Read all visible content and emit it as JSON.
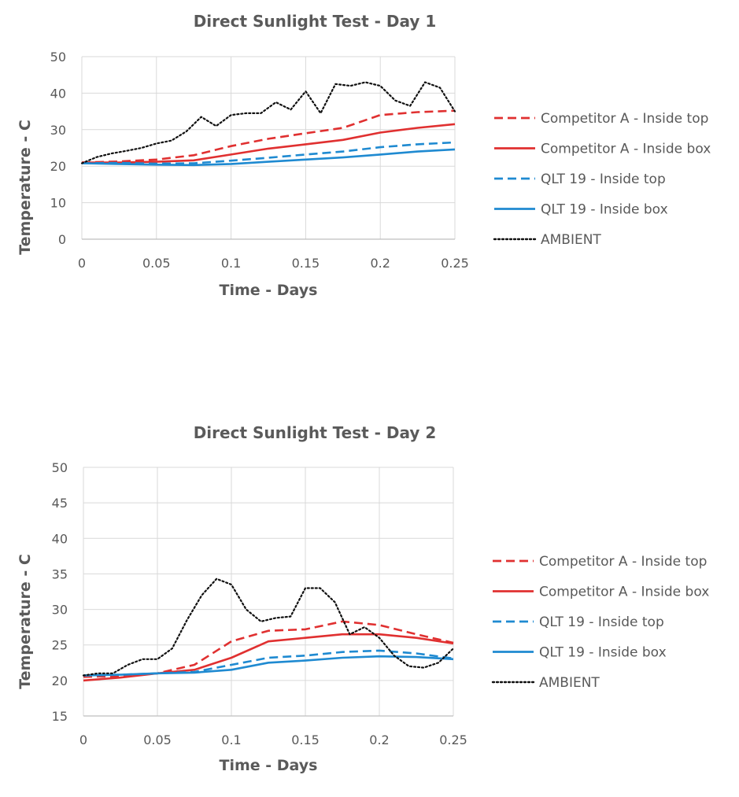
{
  "colors": {
    "competitor": "#e03030",
    "qlt": "#1f8ad1",
    "ambient": "#111111",
    "grid": "#d9d9d9",
    "text": "#595959"
  },
  "chart_data": [
    {
      "type": "line",
      "title": "Direct Sunlight Test -  Day 1",
      "xlabel": "Time - Days",
      "ylabel": "Temperature - C",
      "xlim": [
        0,
        0.25
      ],
      "ylim": [
        0,
        50
      ],
      "xticks": [
        0,
        0.05,
        0.1,
        0.15,
        0.2,
        0.25
      ],
      "xtick_labels": [
        "0",
        "0.05",
        "0.1",
        "0.15",
        "0.2",
        "0.25"
      ],
      "yticks": [
        0,
        10,
        20,
        30,
        40,
        50
      ],
      "ytick_labels": [
        "0",
        "10",
        "20",
        "30",
        "40",
        "50"
      ],
      "grid": true,
      "legend": "right",
      "series": [
        {
          "name": "Competitor A - Inside top",
          "color": "#e03030",
          "style": "dashed",
          "points": [
            [
              0,
              21
            ],
            [
              0.025,
              21.3
            ],
            [
              0.05,
              21.8
            ],
            [
              0.075,
              23
            ],
            [
              0.1,
              25.5
            ],
            [
              0.125,
              27.5
            ],
            [
              0.15,
              29
            ],
            [
              0.175,
              30.5
            ],
            [
              0.2,
              34
            ],
            [
              0.225,
              34.8
            ],
            [
              0.25,
              35.2
            ]
          ]
        },
        {
          "name": "Competitor A - Inside box",
          "color": "#e03030",
          "style": "solid",
          "points": [
            [
              0,
              21
            ],
            [
              0.025,
              21
            ],
            [
              0.05,
              21.2
            ],
            [
              0.075,
              21.6
            ],
            [
              0.1,
              23.2
            ],
            [
              0.125,
              24.8
            ],
            [
              0.15,
              26
            ],
            [
              0.175,
              27.2
            ],
            [
              0.2,
              29.2
            ],
            [
              0.225,
              30.5
            ],
            [
              0.25,
              31.5
            ]
          ]
        },
        {
          "name": "QLT 19 - Inside top",
          "color": "#1f8ad1",
          "style": "dashed",
          "points": [
            [
              0,
              20.8
            ],
            [
              0.025,
              20.9
            ],
            [
              0.05,
              20.7
            ],
            [
              0.075,
              20.8
            ],
            [
              0.1,
              21.5
            ],
            [
              0.125,
              22.3
            ],
            [
              0.15,
              23.2
            ],
            [
              0.175,
              24
            ],
            [
              0.2,
              25.2
            ],
            [
              0.225,
              26
            ],
            [
              0.25,
              26.5
            ]
          ]
        },
        {
          "name": "QLT 19 - Inside box",
          "color": "#1f8ad1",
          "style": "solid",
          "points": [
            [
              0,
              20.8
            ],
            [
              0.025,
              20.6
            ],
            [
              0.05,
              20.4
            ],
            [
              0.075,
              20.3
            ],
            [
              0.1,
              20.6
            ],
            [
              0.125,
              21.2
            ],
            [
              0.15,
              21.8
            ],
            [
              0.175,
              22.4
            ],
            [
              0.2,
              23.2
            ],
            [
              0.225,
              24
            ],
            [
              0.25,
              24.6
            ]
          ]
        },
        {
          "name": "AMBIENT",
          "color": "#111111",
          "style": "dotted",
          "points": [
            [
              0,
              20.8
            ],
            [
              0.01,
              22.5
            ],
            [
              0.02,
              23.5
            ],
            [
              0.03,
              24.2
            ],
            [
              0.04,
              25
            ],
            [
              0.05,
              26.2
            ],
            [
              0.06,
              27
            ],
            [
              0.07,
              29.5
            ],
            [
              0.08,
              33.5
            ],
            [
              0.09,
              31
            ],
            [
              0.1,
              34
            ],
            [
              0.11,
              34.5
            ],
            [
              0.12,
              34.5
            ],
            [
              0.13,
              37.5
            ],
            [
              0.14,
              35.5
            ],
            [
              0.15,
              40.5
            ],
            [
              0.16,
              34.5
            ],
            [
              0.17,
              42.5
            ],
            [
              0.18,
              42
            ],
            [
              0.19,
              43
            ],
            [
              0.2,
              42
            ],
            [
              0.21,
              38
            ],
            [
              0.22,
              36.5
            ],
            [
              0.23,
              43
            ],
            [
              0.24,
              41.5
            ],
            [
              0.25,
              35
            ]
          ]
        }
      ]
    },
    {
      "type": "line",
      "title": "Direct Sunlight Test - Day 2",
      "xlabel": "Time - Days",
      "ylabel": "Temperature - C",
      "xlim": [
        0,
        0.25
      ],
      "ylim": [
        15,
        50
      ],
      "xticks": [
        0,
        0.05,
        0.1,
        0.15,
        0.2,
        0.25
      ],
      "xtick_labels": [
        "0",
        "0.05",
        "0.1",
        "0.15",
        "0.2",
        "0.25"
      ],
      "yticks": [
        15,
        20,
        25,
        30,
        35,
        40,
        45,
        50
      ],
      "ytick_labels": [
        "15",
        "20",
        "25",
        "30",
        "35",
        "40",
        "45",
        "50"
      ],
      "grid": true,
      "legend": "right",
      "series": [
        {
          "name": "Competitor A  - Inside top",
          "color": "#e03030",
          "style": "dashed",
          "points": [
            [
              0,
              20.5
            ],
            [
              0.025,
              20.6
            ],
            [
              0.05,
              21
            ],
            [
              0.075,
              22.2
            ],
            [
              0.1,
              25.5
            ],
            [
              0.125,
              27
            ],
            [
              0.15,
              27.2
            ],
            [
              0.175,
              28.3
            ],
            [
              0.2,
              27.8
            ],
            [
              0.225,
              26.5
            ],
            [
              0.25,
              25.3
            ]
          ]
        },
        {
          "name": "Competitor A  - Inside box",
          "color": "#e03030",
          "style": "solid",
          "points": [
            [
              0,
              20
            ],
            [
              0.025,
              20.4
            ],
            [
              0.05,
              21
            ],
            [
              0.075,
              21.5
            ],
            [
              0.1,
              23.2
            ],
            [
              0.125,
              25.5
            ],
            [
              0.15,
              26
            ],
            [
              0.175,
              26.5
            ],
            [
              0.2,
              26.5
            ],
            [
              0.225,
              26
            ],
            [
              0.25,
              25.2
            ]
          ]
        },
        {
          "name": "QLT 19 - Inside top",
          "color": "#1f8ad1",
          "style": "dashed",
          "points": [
            [
              0,
              20.7
            ],
            [
              0.025,
              20.8
            ],
            [
              0.05,
              21
            ],
            [
              0.075,
              21.2
            ],
            [
              0.1,
              22.2
            ],
            [
              0.125,
              23.2
            ],
            [
              0.15,
              23.5
            ],
            [
              0.175,
              24
            ],
            [
              0.2,
              24.2
            ],
            [
              0.225,
              23.8
            ],
            [
              0.25,
              23.1
            ]
          ]
        },
        {
          "name": "QLT 19 - Inside box",
          "color": "#1f8ad1",
          "style": "solid",
          "points": [
            [
              0,
              20.7
            ],
            [
              0.025,
              20.8
            ],
            [
              0.05,
              21
            ],
            [
              0.075,
              21.1
            ],
            [
              0.1,
              21.5
            ],
            [
              0.125,
              22.5
            ],
            [
              0.15,
              22.8
            ],
            [
              0.175,
              23.2
            ],
            [
              0.2,
              23.4
            ],
            [
              0.225,
              23.3
            ],
            [
              0.25,
              23
            ]
          ]
        },
        {
          "name": "AMBIENT",
          "color": "#111111",
          "style": "dotted",
          "points": [
            [
              0,
              20.7
            ],
            [
              0.01,
              21
            ],
            [
              0.02,
              21
            ],
            [
              0.03,
              22.2
            ],
            [
              0.04,
              23
            ],
            [
              0.05,
              23
            ],
            [
              0.06,
              24.5
            ],
            [
              0.07,
              28.5
            ],
            [
              0.08,
              32
            ],
            [
              0.09,
              34.3
            ],
            [
              0.1,
              33.5
            ],
            [
              0.11,
              30
            ],
            [
              0.12,
              28.3
            ],
            [
              0.13,
              28.8
            ],
            [
              0.14,
              29
            ],
            [
              0.15,
              33
            ],
            [
              0.16,
              33
            ],
            [
              0.17,
              31
            ],
            [
              0.18,
              26.5
            ],
            [
              0.19,
              27.5
            ],
            [
              0.2,
              26
            ],
            [
              0.21,
              23.5
            ],
            [
              0.22,
              22
            ],
            [
              0.23,
              21.8
            ],
            [
              0.24,
              22.5
            ],
            [
              0.25,
              24.5
            ]
          ]
        }
      ]
    }
  ]
}
